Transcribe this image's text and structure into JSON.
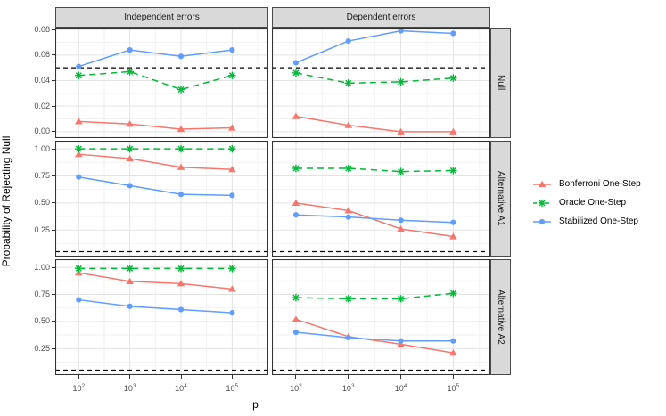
{
  "chart_data": {
    "type": "line",
    "xlabel": "p",
    "ylabel": "Probability of Rejecting Null",
    "x_scale": "log10",
    "x_tick_base": "10",
    "x_exponents": [
      2,
      3,
      4,
      5
    ],
    "x_values": [
      100,
      1000,
      10000,
      100000
    ],
    "facet_columns": [
      "Independent errors",
      "Dependent errors"
    ],
    "facet_rows": [
      "Null",
      "Alternative A1",
      "Alternative A2"
    ],
    "reference_line": {
      "y": 0.05,
      "style": "dashed",
      "color": "#000000"
    },
    "row_axes": [
      {
        "ticks": [
          0.0,
          0.02,
          0.04,
          0.06,
          0.08
        ],
        "tick_labels": [
          "0.00",
          "0.02",
          "0.04",
          "0.06",
          "0.08"
        ],
        "minor_ticks": [
          0.01,
          0.03,
          0.05,
          0.07
        ],
        "ylim": [
          -0.005,
          0.0815
        ]
      },
      {
        "ticks": [
          0.25,
          0.5,
          0.75,
          1.0
        ],
        "tick_labels": [
          "0.25",
          "0.50",
          "0.75",
          "1.00"
        ],
        "minor_ticks": [
          0.125,
          0.375,
          0.625,
          0.875
        ],
        "ylim": [
          0.005,
          1.075
        ]
      },
      {
        "ticks": [
          0.25,
          0.5,
          0.75,
          1.0
        ],
        "tick_labels": [
          "0.25",
          "0.50",
          "0.75",
          "1.00"
        ],
        "minor_ticks": [
          0.125,
          0.375,
          0.625,
          0.875
        ],
        "ylim": [
          0.005,
          1.075
        ]
      }
    ],
    "series_meta": [
      {
        "name": "Bonferroni One-Step",
        "color": "#F8766D",
        "marker": "triangle",
        "dash": "solid"
      },
      {
        "name": "Oracle One-Step",
        "color": "#00BA38",
        "marker": "asterisk",
        "dash": "dashed"
      },
      {
        "name": "Stabilized One-Step",
        "color": "#619CFF",
        "marker": "circle",
        "dash": "solid"
      }
    ],
    "panels": [
      {
        "row_index": 0,
        "col_index": 0,
        "row": "Null",
        "col": "Independent errors",
        "series": [
          {
            "name": "Bonferroni One-Step",
            "values": [
              0.008,
              0.006,
              0.002,
              0.003
            ]
          },
          {
            "name": "Oracle One-Step",
            "values": [
              0.044,
              0.047,
              0.033,
              0.044
            ]
          },
          {
            "name": "Stabilized One-Step",
            "values": [
              0.051,
              0.064,
              0.059,
              0.064
            ]
          }
        ]
      },
      {
        "row_index": 0,
        "col_index": 1,
        "row": "Null",
        "col": "Dependent errors",
        "series": [
          {
            "name": "Bonferroni One-Step",
            "values": [
              0.012,
              0.005,
              0.0,
              0.0
            ]
          },
          {
            "name": "Oracle One-Step",
            "values": [
              0.046,
              0.038,
              0.039,
              0.042
            ]
          },
          {
            "name": "Stabilized One-Step",
            "values": [
              0.054,
              0.071,
              0.079,
              0.077
            ]
          }
        ]
      },
      {
        "row_index": 1,
        "col_index": 0,
        "row": "Alternative A1",
        "col": "Independent errors",
        "series": [
          {
            "name": "Bonferroni One-Step",
            "values": [
              0.95,
              0.91,
              0.83,
              0.81
            ]
          },
          {
            "name": "Oracle One-Step",
            "values": [
              1.0,
              1.0,
              1.0,
              1.0
            ]
          },
          {
            "name": "Stabilized One-Step",
            "values": [
              0.74,
              0.66,
              0.58,
              0.57
            ]
          }
        ]
      },
      {
        "row_index": 1,
        "col_index": 1,
        "row": "Alternative A1",
        "col": "Dependent errors",
        "series": [
          {
            "name": "Bonferroni One-Step",
            "values": [
              0.5,
              0.43,
              0.26,
              0.19
            ]
          },
          {
            "name": "Oracle One-Step",
            "values": [
              0.82,
              0.82,
              0.79,
              0.8
            ]
          },
          {
            "name": "Stabilized One-Step",
            "values": [
              0.39,
              0.37,
              0.34,
              0.32
            ]
          }
        ]
      },
      {
        "row_index": 2,
        "col_index": 0,
        "row": "Alternative A2",
        "col": "Independent errors",
        "series": [
          {
            "name": "Bonferroni One-Step",
            "values": [
              0.95,
              0.87,
              0.85,
              0.8
            ]
          },
          {
            "name": "Oracle One-Step",
            "values": [
              0.99,
              0.99,
              0.99,
              0.99
            ]
          },
          {
            "name": "Stabilized One-Step",
            "values": [
              0.7,
              0.64,
              0.61,
              0.58
            ]
          }
        ]
      },
      {
        "row_index": 2,
        "col_index": 1,
        "row": "Alternative A2",
        "col": "Dependent errors",
        "series": [
          {
            "name": "Bonferroni One-Step",
            "values": [
              0.52,
              0.36,
              0.29,
              0.21
            ]
          },
          {
            "name": "Oracle One-Step",
            "values": [
              0.72,
              0.71,
              0.71,
              0.76
            ]
          },
          {
            "name": "Stabilized One-Step",
            "values": [
              0.4,
              0.35,
              0.32,
              0.32
            ]
          }
        ]
      }
    ],
    "legend_position": "right",
    "grid": "on"
  },
  "colors": {
    "strip_bg": "#D9D9D9",
    "panel_border": "#333333",
    "grid_major": "#E3E3E3",
    "grid_minor": "#F2F2F2",
    "tick_label": "#4D4D4D",
    "reference": "#000000"
  }
}
